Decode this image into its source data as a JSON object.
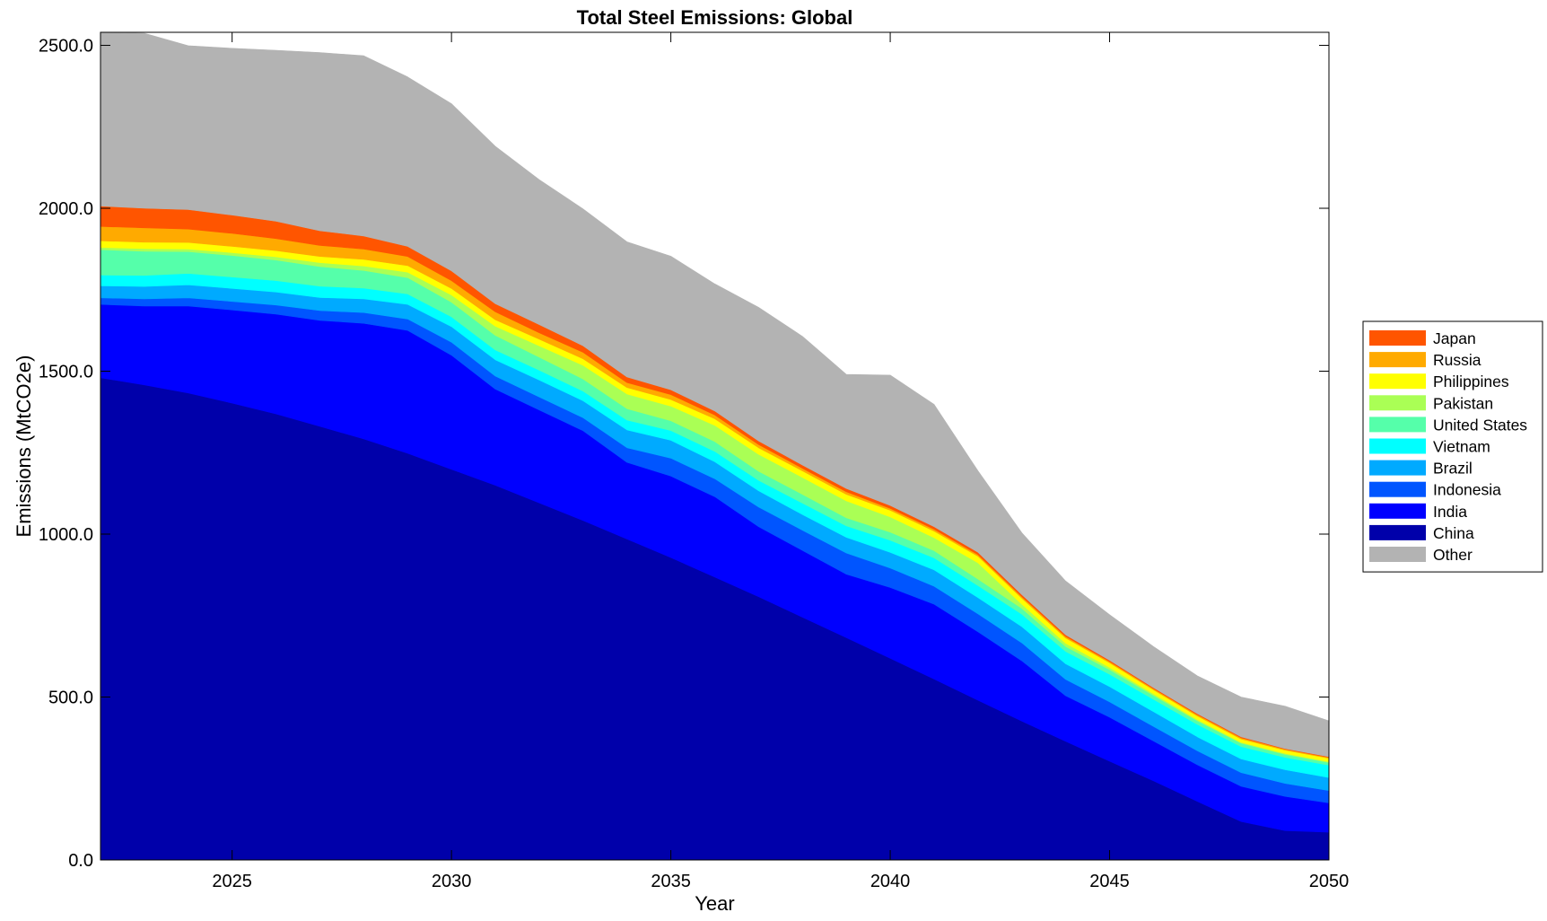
{
  "chart_data": {
    "type": "area",
    "title": "Total Steel Emissions: Global",
    "xlabel": "Year",
    "ylabel": "Emissions (MtCO2e)",
    "xlim": [
      2022,
      2050
    ],
    "ylim": [
      0,
      2540
    ],
    "x_ticks": [
      2025,
      2030,
      2035,
      2040,
      2045,
      2050
    ],
    "y_ticks": [
      0,
      500,
      1000,
      1500,
      2000,
      2500
    ],
    "x_tick_labels": [
      "2025",
      "2030",
      "2035",
      "2040",
      "2045",
      "2050"
    ],
    "y_tick_labels": [
      "0.0",
      "500.0",
      "1000.0",
      "1500.0",
      "2000.0",
      "2500.0"
    ],
    "grid": false,
    "legend_position": "right",
    "x": [
      2022,
      2023,
      2024,
      2025,
      2026,
      2027,
      2028,
      2029,
      2030,
      2031,
      2032,
      2033,
      2034,
      2035,
      2036,
      2037,
      2038,
      2039,
      2040,
      2041,
      2042,
      2043,
      2044,
      2045,
      2046,
      2047,
      2048,
      2049,
      2050
    ],
    "series": [
      {
        "name": "China",
        "color": "#0000AA",
        "values": [
          1480,
          1458,
          1433,
          1402,
          1369,
          1331,
          1292,
          1248,
          1199,
          1150,
          1096,
          1042,
          985,
          928,
          868,
          808,
          745,
          682,
          619,
          555,
          490,
          426,
          364,
          303,
          243,
          180,
          118,
          90,
          85
        ]
      },
      {
        "name": "India",
        "color": "#0000FF",
        "values": [
          225,
          242,
          267,
          286,
          306,
          325,
          355,
          377,
          350,
          295,
          285,
          275,
          235,
          250,
          247,
          215,
          205,
          195,
          217,
          230,
          210,
          185,
          140,
          135,
          122,
          112,
          108,
          105,
          90
        ]
      },
      {
        "name": "Indonesia",
        "color": "#0055FF",
        "values": [
          20,
          22,
          25,
          26,
          28,
          30,
          33,
          35,
          40,
          40,
          40,
          40,
          45,
          55,
          55,
          60,
          62,
          65,
          60,
          55,
          55,
          55,
          50,
          47,
          45,
          43,
          42,
          40,
          38
        ]
      },
      {
        "name": "Brazil",
        "color": "#00AAFF",
        "values": [
          37,
          38,
          40,
          40,
          40,
          40,
          42,
          45,
          48,
          50,
          52,
          52,
          55,
          55,
          52,
          50,
          48,
          48,
          48,
          50,
          50,
          50,
          48,
          47,
          45,
          43,
          42,
          42,
          40
        ]
      },
      {
        "name": "Vietnam",
        "color": "#00FFFF",
        "values": [
          33,
          34,
          35,
          35,
          35,
          35,
          33,
          32,
          30,
          30,
          30,
          30,
          30,
          30,
          32,
          32,
          35,
          35,
          37,
          37,
          37,
          38,
          38,
          38,
          38,
          38,
          38,
          38,
          38
        ]
      },
      {
        "name": "United States",
        "color": "#55FFAA",
        "values": [
          78,
          74,
          67,
          66,
          63,
          60,
          54,
          50,
          45,
          45,
          40,
          37,
          35,
          30,
          30,
          28,
          27,
          25,
          25,
          22,
          20,
          18,
          15,
          14,
          12,
          11,
          10,
          9,
          8
        ]
      },
      {
        "name": "Pakistan",
        "color": "#AAFF55",
        "values": [
          7,
          8,
          8,
          9,
          10,
          12,
          14,
          17,
          22,
          28,
          35,
          42,
          45,
          45,
          50,
          52,
          52,
          52,
          47,
          40,
          50,
          13,
          10,
          7,
          5,
          4,
          3,
          3,
          3
        ]
      },
      {
        "name": "Philippines",
        "color": "#FFFF00",
        "values": [
          20,
          20,
          20,
          19,
          19,
          19,
          20,
          20,
          20,
          20,
          20,
          20,
          20,
          20,
          20,
          20,
          20,
          20,
          20,
          20,
          20,
          18,
          16,
          14,
          12,
          11,
          10,
          10,
          10
        ]
      },
      {
        "name": "Russia",
        "color": "#FFAA00",
        "values": [
          44,
          44,
          41,
          40,
          37,
          34,
          32,
          28,
          24,
          24,
          20,
          20,
          15,
          15,
          12,
          10,
          8,
          8,
          6,
          6,
          5,
          5,
          5,
          4,
          4,
          4,
          4,
          3,
          3
        ]
      },
      {
        "name": "Japan",
        "color": "#FF5500",
        "values": [
          63,
          60,
          60,
          56,
          53,
          45,
          40,
          31,
          30,
          25,
          25,
          20,
          17,
          15,
          12,
          11,
          10,
          10,
          9,
          8,
          7,
          6,
          5,
          4,
          3,
          3,
          3,
          2,
          2
        ]
      },
      {
        "name": "Other",
        "color": "#B3B3B3",
        "values": [
          533,
          537,
          503,
          512,
          525,
          547,
          553,
          520,
          513,
          483,
          445,
          420,
          415,
          410,
          390,
          410,
          395,
          350,
          400,
          375,
          250,
          190,
          165,
          140,
          126,
          116,
          122,
          130,
          110
        ]
      }
    ],
    "legend": [
      "Japan",
      "Russia",
      "Philippines",
      "Pakistan",
      "United States",
      "Vietnam",
      "Brazil",
      "Indonesia",
      "India",
      "China",
      "Other"
    ]
  }
}
